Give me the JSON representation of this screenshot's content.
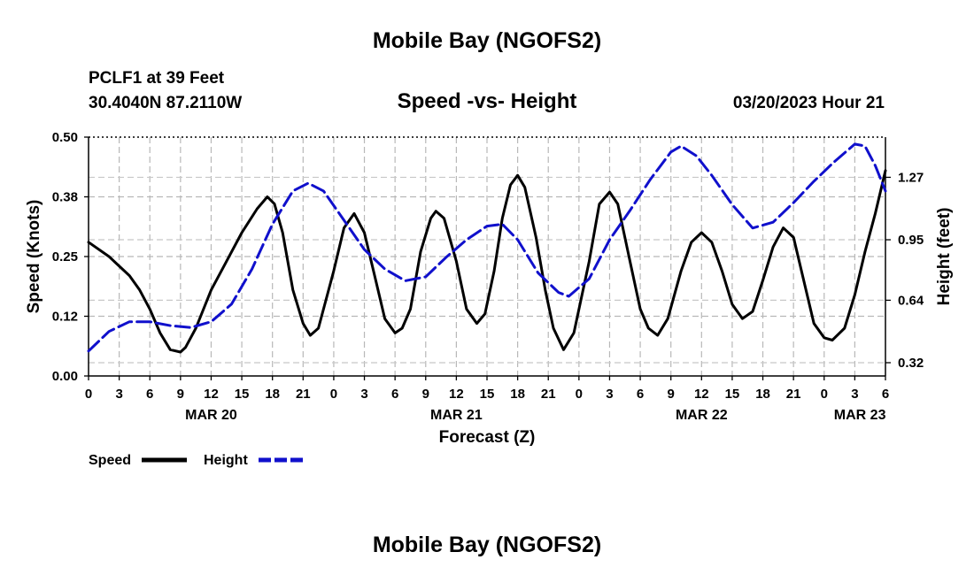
{
  "header": {
    "title": "Mobile Bay (NGOFS2)",
    "station": "PCLF1 at 39 Feet",
    "coords": "30.4040N  87.2110W",
    "subtitle": "Speed -vs- Height",
    "datetime": "03/20/2023 Hour 21",
    "bottom_title": "Mobile Bay (NGOFS2)"
  },
  "chart_data": {
    "type": "line",
    "title": "Speed -vs- Height",
    "xlabel": "Forecast (Z)",
    "ylabel_left": "Speed (Knots)",
    "ylabel_right": "Height (feet)",
    "xlim": [
      0,
      78
    ],
    "ylim_left": [
      0,
      0.5
    ],
    "ylim_right": [
      0.252,
      1.476
    ],
    "left_ticks": [
      {
        "v": 0.0,
        "label": "0.00"
      },
      {
        "v": 0.125,
        "label": "0.12"
      },
      {
        "v": 0.25,
        "label": "0.25"
      },
      {
        "v": 0.375,
        "label": "0.38"
      },
      {
        "v": 0.5,
        "label": "0.50"
      }
    ],
    "right_ticks": [
      {
        "v": 0.32,
        "label": "0.32"
      },
      {
        "v": 0.64,
        "label": "0.64"
      },
      {
        "v": 0.95,
        "label": "0.95"
      },
      {
        "v": 1.27,
        "label": "1.27"
      }
    ],
    "x_ticks": [
      {
        "h": 0,
        "label": "0"
      },
      {
        "h": 3,
        "label": "3"
      },
      {
        "h": 6,
        "label": "6"
      },
      {
        "h": 9,
        "label": "9"
      },
      {
        "h": 12,
        "label": "12"
      },
      {
        "h": 15,
        "label": "15"
      },
      {
        "h": 18,
        "label": "18"
      },
      {
        "h": 21,
        "label": "21"
      },
      {
        "h": 24,
        "label": "0"
      },
      {
        "h": 27,
        "label": "3"
      },
      {
        "h": 30,
        "label": "6"
      },
      {
        "h": 33,
        "label": "9"
      },
      {
        "h": 36,
        "label": "12"
      },
      {
        "h": 39,
        "label": "15"
      },
      {
        "h": 42,
        "label": "18"
      },
      {
        "h": 45,
        "label": "21"
      },
      {
        "h": 48,
        "label": "0"
      },
      {
        "h": 51,
        "label": "3"
      },
      {
        "h": 54,
        "label": "6"
      },
      {
        "h": 57,
        "label": "9"
      },
      {
        "h": 60,
        "label": "12"
      },
      {
        "h": 63,
        "label": "15"
      },
      {
        "h": 66,
        "label": "18"
      },
      {
        "h": 69,
        "label": "21"
      },
      {
        "h": 72,
        "label": "0"
      },
      {
        "h": 75,
        "label": "3"
      },
      {
        "h": 78,
        "label": "6"
      }
    ],
    "date_labels": [
      {
        "h": 12,
        "label": "MAR 20"
      },
      {
        "h": 36,
        "label": "MAR 21"
      },
      {
        "h": 60,
        "label": "MAR 22"
      },
      {
        "h": 75.5,
        "label": "MAR 23"
      }
    ],
    "series": [
      {
        "name": "Speed",
        "axis": "left",
        "color": "#000000",
        "points": [
          [
            0,
            0.28
          ],
          [
            2,
            0.25
          ],
          [
            4,
            0.21
          ],
          [
            5,
            0.18
          ],
          [
            6,
            0.14
          ],
          [
            7,
            0.09
          ],
          [
            8,
            0.055
          ],
          [
            9,
            0.05
          ],
          [
            9.5,
            0.06
          ],
          [
            10.5,
            0.1
          ],
          [
            12,
            0.18
          ],
          [
            13.5,
            0.24
          ],
          [
            15,
            0.3
          ],
          [
            16.5,
            0.35
          ],
          [
            17.5,
            0.375
          ],
          [
            18.2,
            0.36
          ],
          [
            19,
            0.3
          ],
          [
            20,
            0.18
          ],
          [
            21,
            0.11
          ],
          [
            21.7,
            0.085
          ],
          [
            22.5,
            0.1
          ],
          [
            24,
            0.22
          ],
          [
            25,
            0.31
          ],
          [
            26,
            0.34
          ],
          [
            27,
            0.3
          ],
          [
            28,
            0.21
          ],
          [
            29,
            0.12
          ],
          [
            30,
            0.09
          ],
          [
            30.7,
            0.1
          ],
          [
            31.5,
            0.14
          ],
          [
            32.5,
            0.26
          ],
          [
            33.5,
            0.33
          ],
          [
            34,
            0.345
          ],
          [
            34.8,
            0.33
          ],
          [
            36,
            0.24
          ],
          [
            37,
            0.14
          ],
          [
            38,
            0.11
          ],
          [
            38.8,
            0.13
          ],
          [
            39.7,
            0.22
          ],
          [
            40.5,
            0.33
          ],
          [
            41.3,
            0.4
          ],
          [
            42,
            0.42
          ],
          [
            42.7,
            0.395
          ],
          [
            43.8,
            0.29
          ],
          [
            44.7,
            0.18
          ],
          [
            45.5,
            0.1
          ],
          [
            46.5,
            0.055
          ],
          [
            47.5,
            0.09
          ],
          [
            49,
            0.24
          ],
          [
            50,
            0.36
          ],
          [
            51,
            0.385
          ],
          [
            51.8,
            0.36
          ],
          [
            53,
            0.24
          ],
          [
            54,
            0.14
          ],
          [
            54.8,
            0.1
          ],
          [
            55.7,
            0.085
          ],
          [
            56.7,
            0.12
          ],
          [
            58,
            0.22
          ],
          [
            59,
            0.28
          ],
          [
            60,
            0.3
          ],
          [
            61,
            0.28
          ],
          [
            62,
            0.22
          ],
          [
            63,
            0.15
          ],
          [
            64,
            0.12
          ],
          [
            65,
            0.135
          ],
          [
            66,
            0.2
          ],
          [
            67,
            0.27
          ],
          [
            68,
            0.31
          ],
          [
            69,
            0.29
          ],
          [
            70,
            0.2
          ],
          [
            71,
            0.11
          ],
          [
            72,
            0.08
          ],
          [
            72.8,
            0.075
          ],
          [
            74,
            0.1
          ],
          [
            75,
            0.17
          ],
          [
            76,
            0.26
          ],
          [
            77,
            0.34
          ],
          [
            78,
            0.43
          ]
        ]
      },
      {
        "name": "Height",
        "axis": "right",
        "color": "#1010cc",
        "points": [
          [
            0,
            0.38
          ],
          [
            2,
            0.48
          ],
          [
            4,
            0.53
          ],
          [
            6,
            0.53
          ],
          [
            8,
            0.51
          ],
          [
            10,
            0.5
          ],
          [
            12,
            0.53
          ],
          [
            14,
            0.62
          ],
          [
            16,
            0.8
          ],
          [
            18,
            1.03
          ],
          [
            20,
            1.2
          ],
          [
            21.5,
            1.24
          ],
          [
            23,
            1.2
          ],
          [
            25,
            1.05
          ],
          [
            27,
            0.9
          ],
          [
            29,
            0.8
          ],
          [
            31,
            0.74
          ],
          [
            33,
            0.76
          ],
          [
            35,
            0.86
          ],
          [
            37,
            0.95
          ],
          [
            39,
            1.02
          ],
          [
            40.5,
            1.03
          ],
          [
            42,
            0.95
          ],
          [
            44,
            0.78
          ],
          [
            46,
            0.68
          ],
          [
            47,
            0.66
          ],
          [
            49,
            0.75
          ],
          [
            51,
            0.95
          ],
          [
            53,
            1.1
          ],
          [
            55,
            1.26
          ],
          [
            57,
            1.4
          ],
          [
            58,
            1.43
          ],
          [
            59.5,
            1.38
          ],
          [
            61,
            1.28
          ],
          [
            63,
            1.13
          ],
          [
            65,
            1.01
          ],
          [
            67,
            1.04
          ],
          [
            69,
            1.14
          ],
          [
            71,
            1.25
          ],
          [
            73,
            1.35
          ],
          [
            75,
            1.44
          ],
          [
            76,
            1.43
          ],
          [
            77,
            1.33
          ],
          [
            78,
            1.2
          ]
        ]
      }
    ],
    "legend": [
      {
        "label": "Speed",
        "color": "#000000",
        "style": "solid"
      },
      {
        "label": "Height",
        "color": "#1010cc",
        "style": "dashed"
      }
    ],
    "grid": true
  }
}
